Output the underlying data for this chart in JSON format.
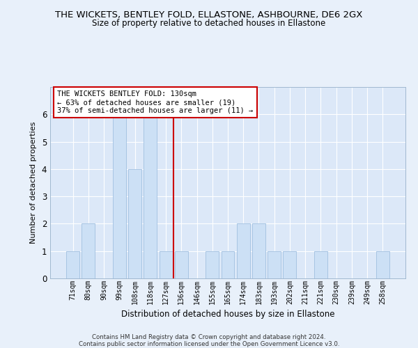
{
  "title": "THE WICKETS, BENTLEY FOLD, ELLASTONE, ASHBOURNE, DE6 2GX",
  "subtitle": "Size of property relative to detached houses in Ellastone",
  "xlabel": "Distribution of detached houses by size in Ellastone",
  "ylabel": "Number of detached properties",
  "categories": [
    "71sqm",
    "80sqm",
    "90sqm",
    "99sqm",
    "108sqm",
    "118sqm",
    "127sqm",
    "136sqm",
    "146sqm",
    "155sqm",
    "165sqm",
    "174sqm",
    "183sqm",
    "193sqm",
    "202sqm",
    "211sqm",
    "221sqm",
    "230sqm",
    "239sqm",
    "249sqm",
    "258sqm"
  ],
  "values": [
    1,
    2,
    0,
    6,
    4,
    6,
    1,
    1,
    0,
    1,
    1,
    2,
    2,
    1,
    1,
    0,
    1,
    0,
    0,
    0,
    1
  ],
  "bar_color": "#cce0f5",
  "bar_edge_color": "#a0c0e0",
  "highlight_color": "#cc0000",
  "annotation_text": "THE WICKETS BENTLEY FOLD: 130sqm\n← 63% of detached houses are smaller (19)\n37% of semi-detached houses are larger (11) →",
  "annotation_box_color": "#cc0000",
  "ylim": [
    0,
    7
  ],
  "yticks": [
    0,
    1,
    2,
    3,
    4,
    5,
    6,
    7
  ],
  "background_color": "#dce8f8",
  "fig_background_color": "#e8f0fa",
  "grid_color": "#ffffff",
  "footer_line1": "Contains HM Land Registry data © Crown copyright and database right 2024.",
  "footer_line2": "Contains public sector information licensed under the Open Government Licence v3.0."
}
